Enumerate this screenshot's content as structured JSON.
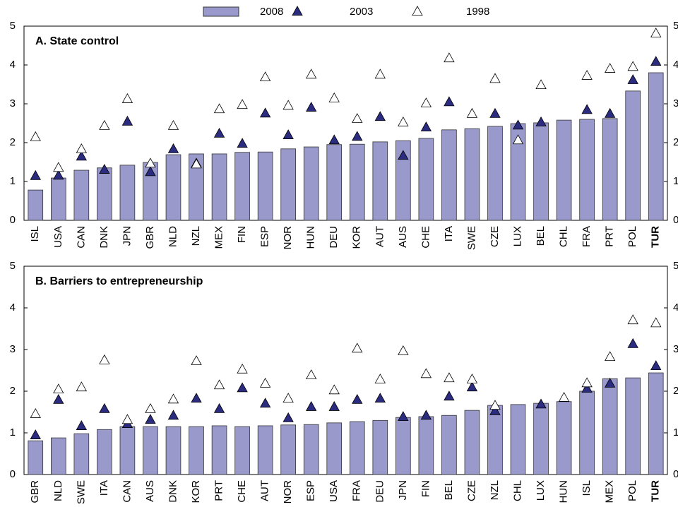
{
  "chart_data": [
    {
      "type": "bar",
      "title": "A. State control",
      "categories": [
        "ISL",
        "USA",
        "CAN",
        "DNK",
        "JPN",
        "GBR",
        "NLD",
        "NZL",
        "MEX",
        "FIN",
        "ESP",
        "NOR",
        "HUN",
        "DEU",
        "KOR",
        "AUT",
        "AUS",
        "CHE",
        "ITA",
        "SWE",
        "CZE",
        "LUX",
        "BEL",
        "CHL",
        "FRA",
        "PRT",
        "POL",
        "TUR"
      ],
      "series": [
        {
          "name": "2008",
          "marker": "bar",
          "color": "#9999cc",
          "values": [
            0.78,
            1.09,
            1.29,
            1.35,
            1.42,
            1.49,
            1.69,
            1.71,
            1.71,
            1.75,
            1.76,
            1.84,
            1.89,
            1.95,
            1.96,
            2.02,
            2.05,
            2.11,
            2.33,
            2.36,
            2.42,
            2.49,
            2.51,
            2.58,
            2.6,
            2.62,
            3.33,
            3.8
          ]
        },
        {
          "name": "2003",
          "marker": "filled-triangle",
          "color": "#2b2b80",
          "values": [
            1.15,
            1.16,
            1.65,
            1.31,
            2.55,
            1.25,
            1.84,
            1.47,
            2.24,
            1.98,
            2.76,
            2.2,
            2.91,
            2.07,
            2.16,
            2.67,
            1.67,
            2.4,
            3.05,
            null,
            2.75,
            2.45,
            2.53,
            null,
            2.85,
            2.75,
            3.62,
            4.09
          ]
        },
        {
          "name": "1998",
          "marker": "open-triangle",
          "color": "#ffffff",
          "values": [
            2.15,
            1.36,
            1.84,
            2.44,
            3.13,
            1.47,
            2.44,
            1.45,
            2.87,
            2.98,
            3.69,
            2.96,
            3.76,
            3.15,
            2.62,
            3.76,
            2.53,
            3.02,
            4.18,
            2.75,
            3.65,
            2.07,
            3.49,
            null,
            3.73,
            3.91,
            3.96,
            4.82
          ]
        }
      ],
      "ylim": [
        0,
        5
      ],
      "yticks": [
        0,
        1,
        2,
        3,
        4,
        5
      ]
    },
    {
      "type": "bar",
      "title": "B. Barriers to entrepreneurship",
      "categories": [
        "GBR",
        "NLD",
        "SWE",
        "ITA",
        "CAN",
        "AUS",
        "DNK",
        "KOR",
        "PRT",
        "CHE",
        "AUT",
        "NOR",
        "ESP",
        "USA",
        "FRA",
        "DEU",
        "JPN",
        "FIN",
        "BEL",
        "CZE",
        "NZL",
        "CHL",
        "LUX",
        "HUN",
        "ISL",
        "MEX",
        "POL",
        "TUR"
      ],
      "series": [
        {
          "name": "2008",
          "marker": "bar",
          "color": "#9999cc",
          "values": [
            0.81,
            0.88,
            0.98,
            1.08,
            1.15,
            1.15,
            1.15,
            1.15,
            1.17,
            1.15,
            1.17,
            1.19,
            1.2,
            1.24,
            1.27,
            1.3,
            1.37,
            1.39,
            1.42,
            1.54,
            1.66,
            1.68,
            1.71,
            1.75,
            2.0,
            2.3,
            2.32,
            2.44
          ]
        },
        {
          "name": "2003",
          "marker": "filled-triangle",
          "color": "#2b2b80",
          "values": [
            0.95,
            1.8,
            1.17,
            1.58,
            1.22,
            1.32,
            1.42,
            1.83,
            1.58,
            2.08,
            1.71,
            1.36,
            1.63,
            1.63,
            1.8,
            1.83,
            1.39,
            1.42,
            1.88,
            2.1,
            1.53,
            null,
            1.69,
            null,
            2.07,
            2.19,
            3.14,
            2.61
          ]
        },
        {
          "name": "1998",
          "marker": "open-triangle",
          "color": "#ffffff",
          "values": [
            1.46,
            2.05,
            2.1,
            2.75,
            1.32,
            1.58,
            1.81,
            2.73,
            2.15,
            2.53,
            2.19,
            1.83,
            2.39,
            2.03,
            3.03,
            2.29,
            2.97,
            2.42,
            2.32,
            2.29,
            1.66,
            null,
            null,
            1.85,
            2.2,
            2.83,
            3.71,
            3.64
          ]
        }
      ],
      "ylim": [
        0,
        5
      ],
      "yticks": [
        0,
        1,
        2,
        3,
        4,
        5
      ]
    }
  ]
}
